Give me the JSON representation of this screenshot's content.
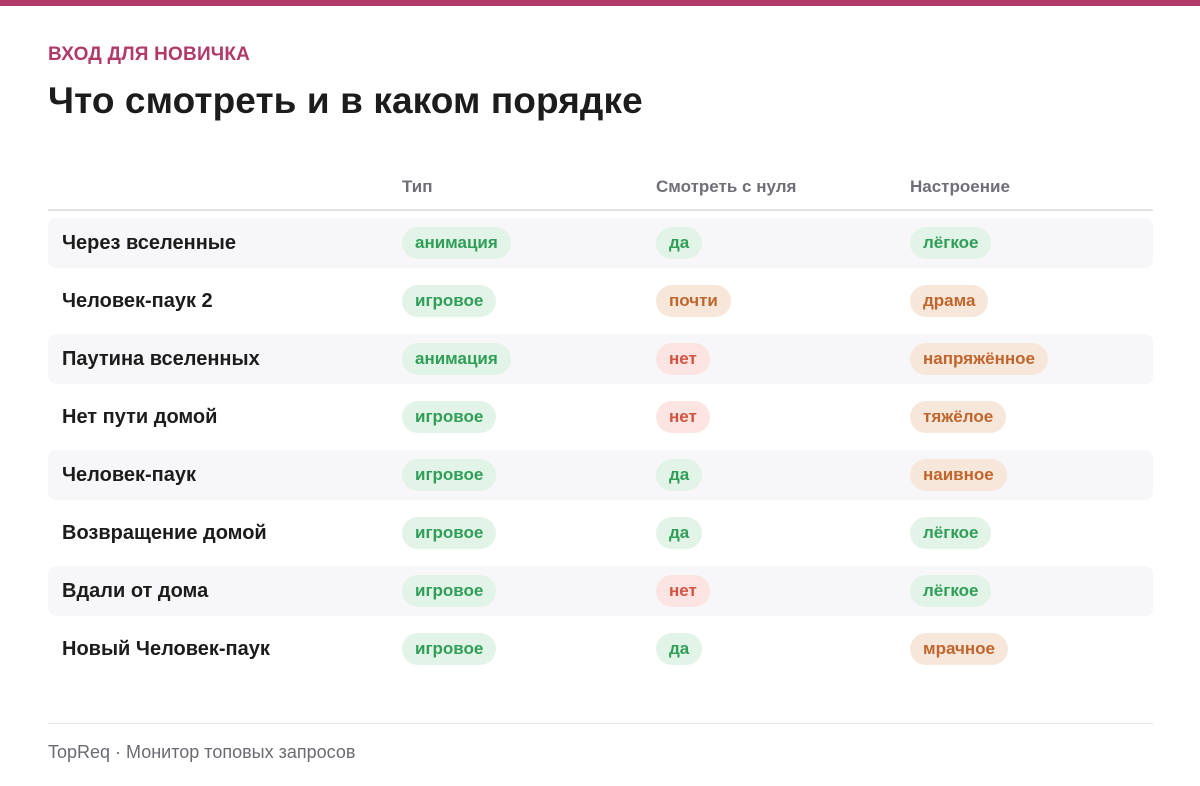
{
  "colors": {
    "accent": "#b23a6a",
    "pill_green_text": "#2f9e57",
    "pill_green_bg": "#e2f3e7",
    "pill_orange_text": "#c0652b",
    "pill_orange_bg": "#f7e6da",
    "pill_red_text": "#d2533f",
    "pill_red_bg": "#fbe4e1"
  },
  "header": {
    "eyebrow": "ВХОД ДЛЯ НОВИЧКА",
    "title": "Что смотреть и в каком порядке"
  },
  "table": {
    "columns": [
      "Тип",
      "Смотреть с нуля",
      "Настроение"
    ],
    "rows": [
      {
        "name": "Через вселенные",
        "type": "анимация",
        "type_tone": "green",
        "start": "да",
        "start_tone": "green",
        "mood": "лёгкое",
        "mood_tone": "green"
      },
      {
        "name": "Человек-паук 2",
        "type": "игровое",
        "type_tone": "green",
        "start": "почти",
        "start_tone": "orange",
        "mood": "драма",
        "mood_tone": "orange"
      },
      {
        "name": "Паутина вселенных",
        "type": "анимация",
        "type_tone": "green",
        "start": "нет",
        "start_tone": "red",
        "mood": "напряжённое",
        "mood_tone": "orange"
      },
      {
        "name": "Нет пути домой",
        "type": "игровое",
        "type_tone": "green",
        "start": "нет",
        "start_tone": "red",
        "mood": "тяжёлое",
        "mood_tone": "orange"
      },
      {
        "name": "Человек-паук",
        "type": "игровое",
        "type_tone": "green",
        "start": "да",
        "start_tone": "green",
        "mood": "наивное",
        "mood_tone": "orange"
      },
      {
        "name": "Возвращение домой",
        "type": "игровое",
        "type_tone": "green",
        "start": "да",
        "start_tone": "green",
        "mood": "лёгкое",
        "mood_tone": "green"
      },
      {
        "name": "Вдали от дома",
        "type": "игровое",
        "type_tone": "green",
        "start": "нет",
        "start_tone": "red",
        "mood": "лёгкое",
        "mood_tone": "green"
      },
      {
        "name": "Новый Человек-паук",
        "type": "игровое",
        "type_tone": "green",
        "start": "да",
        "start_tone": "green",
        "mood": "мрачное",
        "mood_tone": "orange"
      }
    ]
  },
  "footer": {
    "text": "TopReq · Монитор топовых запросов"
  }
}
